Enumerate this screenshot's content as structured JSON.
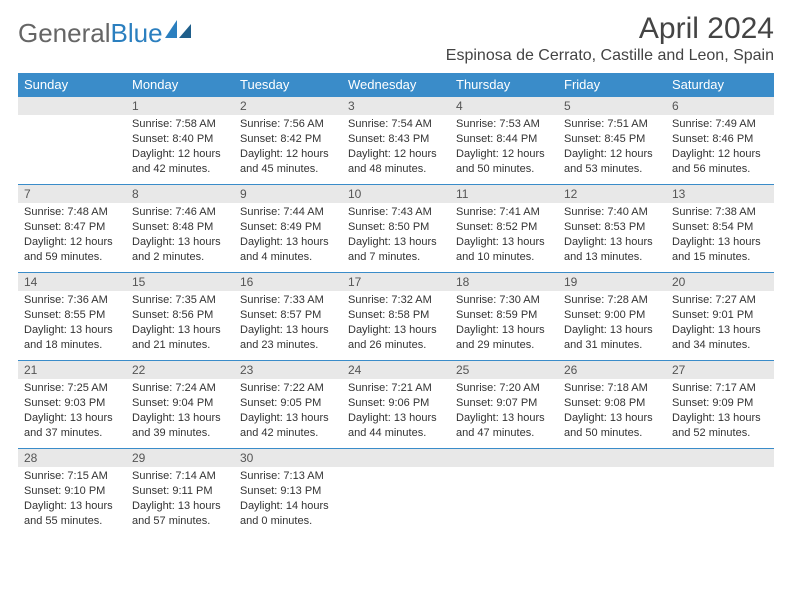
{
  "brand": {
    "part1": "General",
    "part2": "Blue"
  },
  "title": "April 2024",
  "location": "Espinosa de Cerrato, Castille and Leon, Spain",
  "colors": {
    "header_bg": "#3a8cc9",
    "header_fg": "#ffffff",
    "daynum_bg": "#e8e8e8",
    "row_border": "#3a8cc9",
    "brand_accent": "#2b7fbf",
    "brand_gray": "#666666",
    "text": "#333333"
  },
  "weekdays": [
    "Sunday",
    "Monday",
    "Tuesday",
    "Wednesday",
    "Thursday",
    "Friday",
    "Saturday"
  ],
  "weeks": [
    [
      null,
      {
        "n": "1",
        "sr": "Sunrise: 7:58 AM",
        "ss": "Sunset: 8:40 PM",
        "d1": "Daylight: 12 hours",
        "d2": "and 42 minutes."
      },
      {
        "n": "2",
        "sr": "Sunrise: 7:56 AM",
        "ss": "Sunset: 8:42 PM",
        "d1": "Daylight: 12 hours",
        "d2": "and 45 minutes."
      },
      {
        "n": "3",
        "sr": "Sunrise: 7:54 AM",
        "ss": "Sunset: 8:43 PM",
        "d1": "Daylight: 12 hours",
        "d2": "and 48 minutes."
      },
      {
        "n": "4",
        "sr": "Sunrise: 7:53 AM",
        "ss": "Sunset: 8:44 PM",
        "d1": "Daylight: 12 hours",
        "d2": "and 50 minutes."
      },
      {
        "n": "5",
        "sr": "Sunrise: 7:51 AM",
        "ss": "Sunset: 8:45 PM",
        "d1": "Daylight: 12 hours",
        "d2": "and 53 minutes."
      },
      {
        "n": "6",
        "sr": "Sunrise: 7:49 AM",
        "ss": "Sunset: 8:46 PM",
        "d1": "Daylight: 12 hours",
        "d2": "and 56 minutes."
      }
    ],
    [
      {
        "n": "7",
        "sr": "Sunrise: 7:48 AM",
        "ss": "Sunset: 8:47 PM",
        "d1": "Daylight: 12 hours",
        "d2": "and 59 minutes."
      },
      {
        "n": "8",
        "sr": "Sunrise: 7:46 AM",
        "ss": "Sunset: 8:48 PM",
        "d1": "Daylight: 13 hours",
        "d2": "and 2 minutes."
      },
      {
        "n": "9",
        "sr": "Sunrise: 7:44 AM",
        "ss": "Sunset: 8:49 PM",
        "d1": "Daylight: 13 hours",
        "d2": "and 4 minutes."
      },
      {
        "n": "10",
        "sr": "Sunrise: 7:43 AM",
        "ss": "Sunset: 8:50 PM",
        "d1": "Daylight: 13 hours",
        "d2": "and 7 minutes."
      },
      {
        "n": "11",
        "sr": "Sunrise: 7:41 AM",
        "ss": "Sunset: 8:52 PM",
        "d1": "Daylight: 13 hours",
        "d2": "and 10 minutes."
      },
      {
        "n": "12",
        "sr": "Sunrise: 7:40 AM",
        "ss": "Sunset: 8:53 PM",
        "d1": "Daylight: 13 hours",
        "d2": "and 13 minutes."
      },
      {
        "n": "13",
        "sr": "Sunrise: 7:38 AM",
        "ss": "Sunset: 8:54 PM",
        "d1": "Daylight: 13 hours",
        "d2": "and 15 minutes."
      }
    ],
    [
      {
        "n": "14",
        "sr": "Sunrise: 7:36 AM",
        "ss": "Sunset: 8:55 PM",
        "d1": "Daylight: 13 hours",
        "d2": "and 18 minutes."
      },
      {
        "n": "15",
        "sr": "Sunrise: 7:35 AM",
        "ss": "Sunset: 8:56 PM",
        "d1": "Daylight: 13 hours",
        "d2": "and 21 minutes."
      },
      {
        "n": "16",
        "sr": "Sunrise: 7:33 AM",
        "ss": "Sunset: 8:57 PM",
        "d1": "Daylight: 13 hours",
        "d2": "and 23 minutes."
      },
      {
        "n": "17",
        "sr": "Sunrise: 7:32 AM",
        "ss": "Sunset: 8:58 PM",
        "d1": "Daylight: 13 hours",
        "d2": "and 26 minutes."
      },
      {
        "n": "18",
        "sr": "Sunrise: 7:30 AM",
        "ss": "Sunset: 8:59 PM",
        "d1": "Daylight: 13 hours",
        "d2": "and 29 minutes."
      },
      {
        "n": "19",
        "sr": "Sunrise: 7:28 AM",
        "ss": "Sunset: 9:00 PM",
        "d1": "Daylight: 13 hours",
        "d2": "and 31 minutes."
      },
      {
        "n": "20",
        "sr": "Sunrise: 7:27 AM",
        "ss": "Sunset: 9:01 PM",
        "d1": "Daylight: 13 hours",
        "d2": "and 34 minutes."
      }
    ],
    [
      {
        "n": "21",
        "sr": "Sunrise: 7:25 AM",
        "ss": "Sunset: 9:03 PM",
        "d1": "Daylight: 13 hours",
        "d2": "and 37 minutes."
      },
      {
        "n": "22",
        "sr": "Sunrise: 7:24 AM",
        "ss": "Sunset: 9:04 PM",
        "d1": "Daylight: 13 hours",
        "d2": "and 39 minutes."
      },
      {
        "n": "23",
        "sr": "Sunrise: 7:22 AM",
        "ss": "Sunset: 9:05 PM",
        "d1": "Daylight: 13 hours",
        "d2": "and 42 minutes."
      },
      {
        "n": "24",
        "sr": "Sunrise: 7:21 AM",
        "ss": "Sunset: 9:06 PM",
        "d1": "Daylight: 13 hours",
        "d2": "and 44 minutes."
      },
      {
        "n": "25",
        "sr": "Sunrise: 7:20 AM",
        "ss": "Sunset: 9:07 PM",
        "d1": "Daylight: 13 hours",
        "d2": "and 47 minutes."
      },
      {
        "n": "26",
        "sr": "Sunrise: 7:18 AM",
        "ss": "Sunset: 9:08 PM",
        "d1": "Daylight: 13 hours",
        "d2": "and 50 minutes."
      },
      {
        "n": "27",
        "sr": "Sunrise: 7:17 AM",
        "ss": "Sunset: 9:09 PM",
        "d1": "Daylight: 13 hours",
        "d2": "and 52 minutes."
      }
    ],
    [
      {
        "n": "28",
        "sr": "Sunrise: 7:15 AM",
        "ss": "Sunset: 9:10 PM",
        "d1": "Daylight: 13 hours",
        "d2": "and 55 minutes."
      },
      {
        "n": "29",
        "sr": "Sunrise: 7:14 AM",
        "ss": "Sunset: 9:11 PM",
        "d1": "Daylight: 13 hours",
        "d2": "and 57 minutes."
      },
      {
        "n": "30",
        "sr": "Sunrise: 7:13 AM",
        "ss": "Sunset: 9:13 PM",
        "d1": "Daylight: 14 hours",
        "d2": "and 0 minutes."
      },
      null,
      null,
      null,
      null
    ]
  ]
}
